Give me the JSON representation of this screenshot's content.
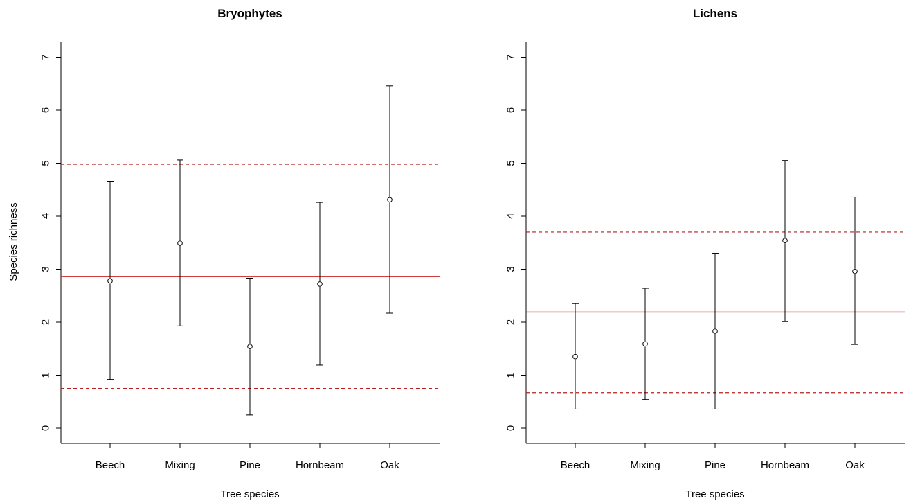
{
  "chart_data": [
    {
      "type": "scatter",
      "title": "Bryophytes",
      "xlabel": "Tree species",
      "ylabel": "Species richness",
      "categories": [
        "Beech",
        "Mixing",
        "Pine",
        "Hornbeam",
        "Oak"
      ],
      "series": [
        {
          "values": [
            2.78,
            3.49,
            1.54,
            2.72,
            4.31
          ],
          "lower": [
            0.92,
            1.93,
            0.25,
            1.19,
            2.17
          ],
          "upper": [
            4.66,
            5.06,
            2.83,
            4.26,
            6.46
          ]
        }
      ],
      "reference_lines": {
        "mean": 2.86,
        "lower": 0.75,
        "upper": 4.98
      },
      "ylim": [
        0,
        7
      ],
      "yticks": [
        "0",
        "1",
        "2",
        "3",
        "4",
        "5",
        "6",
        "7"
      ],
      "grid": false,
      "colors": {
        "points": "#000000",
        "mean_line": "#cc2222",
        "band_line": "#b22222"
      }
    },
    {
      "type": "scatter",
      "title": "Lichens",
      "xlabel": "Tree species",
      "ylabel": "",
      "categories": [
        "Beech",
        "Mixing",
        "Pine",
        "Hornbeam",
        "Oak"
      ],
      "series": [
        {
          "values": [
            1.35,
            1.59,
            1.83,
            3.54,
            2.96
          ],
          "lower": [
            0.36,
            0.54,
            0.36,
            2.01,
            1.58
          ],
          "upper": [
            2.35,
            2.64,
            3.3,
            5.05,
            4.36
          ]
        }
      ],
      "reference_lines": {
        "mean": 2.19,
        "lower": 0.67,
        "upper": 3.7
      },
      "ylim": [
        0,
        7
      ],
      "yticks": [
        "0",
        "1",
        "2",
        "3",
        "4",
        "5",
        "6",
        "7"
      ],
      "grid": false,
      "colors": {
        "points": "#000000",
        "mean_line": "#cc2222",
        "band_line": "#b22222"
      }
    }
  ]
}
